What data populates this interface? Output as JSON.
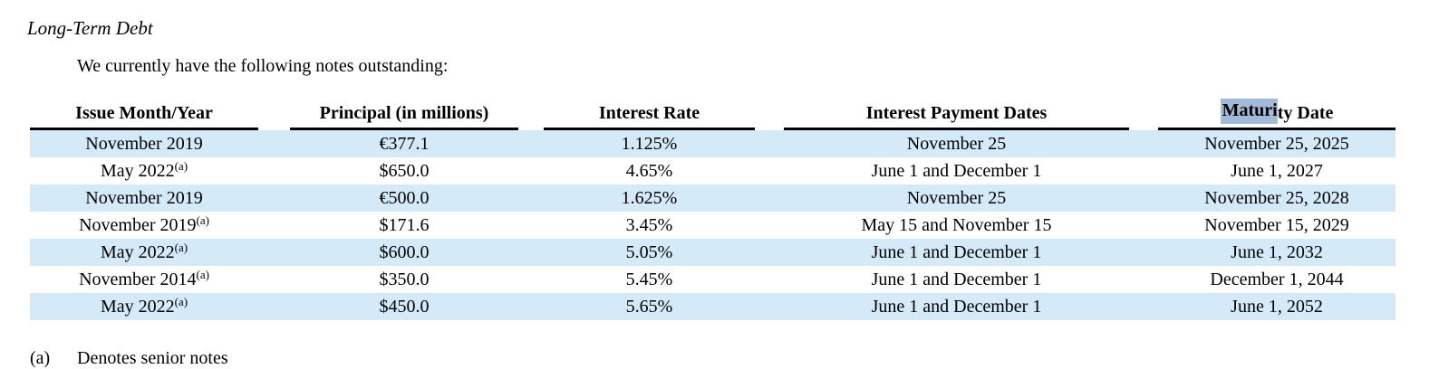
{
  "page": {
    "title": "Long-Term Debt",
    "intro": "We currently have the following notes outstanding:"
  },
  "table": {
    "headers": {
      "issue": "Issue Month/Year",
      "principal": "Principal (in millions)",
      "rate": "Interest Rate",
      "payment_dates": "Interest Payment Dates",
      "maturity_highlighted": "Maturi",
      "maturity_rest": "ty Date"
    },
    "rows": [
      {
        "issue": "November 2019",
        "sup": "",
        "principal": "€377.1",
        "rate": "1.125%",
        "payment": "November 25",
        "maturity": "November 25, 2025"
      },
      {
        "issue": "May 2022",
        "sup": "(a)",
        "principal": "$650.0",
        "rate": "4.65%",
        "payment": "June 1 and December 1",
        "maturity": "June 1, 2027"
      },
      {
        "issue": "November 2019",
        "sup": "",
        "principal": "€500.0",
        "rate": "1.625%",
        "payment": "November 25",
        "maturity": "November 25, 2028"
      },
      {
        "issue": "November 2019",
        "sup": "(a)",
        "principal": "$171.6",
        "rate": "3.45%",
        "payment": "May 15 and November 15",
        "maturity": "November 15, 2029"
      },
      {
        "issue": "May 2022",
        "sup": "(a)",
        "principal": "$600.0",
        "rate": "5.05%",
        "payment": "June 1 and December 1",
        "maturity": "June 1, 2032"
      },
      {
        "issue": "November 2014",
        "sup": "(a)",
        "principal": "$350.0",
        "rate": "5.45%",
        "payment": "June 1 and December 1",
        "maturity": "December 1, 2044"
      },
      {
        "issue": "May 2022",
        "sup": "(a)",
        "principal": "$450.0",
        "rate": "5.65%",
        "payment": "June 1 and December 1",
        "maturity": "June 1, 2052"
      }
    ]
  },
  "footnote": {
    "marker": "(a)",
    "text": "Denotes senior notes"
  },
  "colors": {
    "row_stripe": "#d4eaf9",
    "search_highlight": "#a2bad7"
  }
}
